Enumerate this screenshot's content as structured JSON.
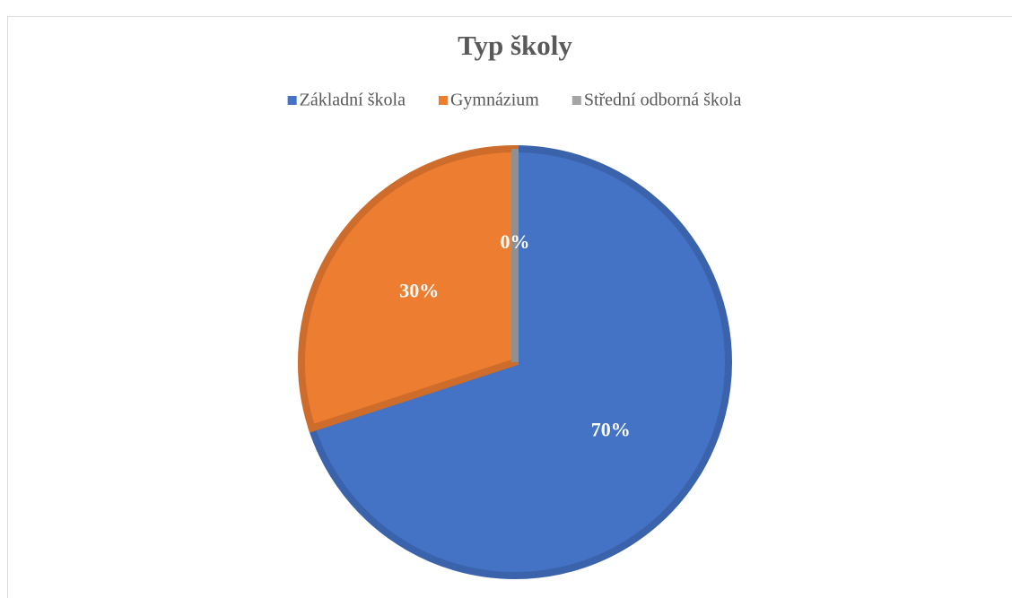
{
  "chart_data": {
    "type": "pie",
    "title": "Typ školy",
    "categories": [
      "Základní škola",
      "Gymnázium",
      "Střední odborná škola"
    ],
    "values": [
      70,
      30,
      0
    ],
    "value_labels": [
      "70%",
      "30%",
      "0%"
    ],
    "colors": [
      "#4472c4",
      "#ed7d31",
      "#a5a5a5"
    ],
    "legend": "top"
  }
}
